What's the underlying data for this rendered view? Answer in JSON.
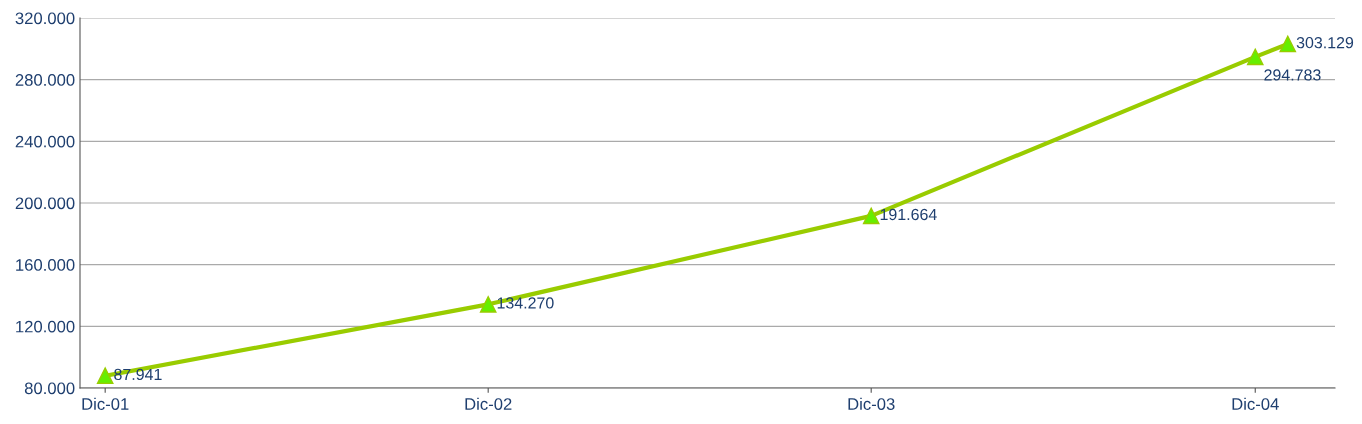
{
  "chart_data": {
    "type": "line",
    "x": [
      "2001-12",
      "2002-12",
      "2003-12",
      "2004-12",
      "2005-01"
    ],
    "series": [
      {
        "color": "#99cc00",
        "values": [
          87941,
          134270,
          191664,
          294783,
          303129
        ],
        "value_labels": [
          "87.941",
          "134.270",
          "191.664",
          "294.783",
          "303.129"
        ]
      }
    ],
    "marker": "triangle",
    "line_style": "solid",
    "grid": "y",
    "xlim": [
      "2001-11-07",
      "2005-02-15"
    ],
    "xticks": [
      {
        "value": "2001-12",
        "label": "Dic-01"
      },
      {
        "value": "2002-12",
        "label": "Dic-02"
      },
      {
        "value": "2003-12",
        "label": "Dic-03"
      },
      {
        "value": "2004-12",
        "label": "Dic-04"
      }
    ],
    "ylim": [
      80000,
      320000
    ],
    "yticks": [
      {
        "value": 80000,
        "label": "80.000"
      },
      {
        "value": 120000,
        "label": "120.000"
      },
      {
        "value": 160000,
        "label": "160.000"
      },
      {
        "value": 200000,
        "label": "200.000"
      },
      {
        "value": 240000,
        "label": "240.000"
      },
      {
        "value": 280000,
        "label": "280.000"
      },
      {
        "value": 320000,
        "label": "320.000"
      }
    ]
  }
}
